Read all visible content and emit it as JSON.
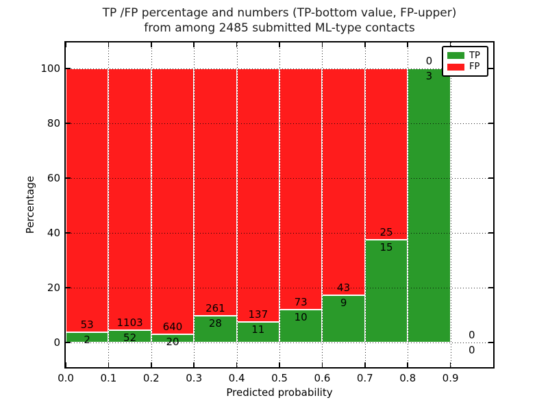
{
  "figure": {
    "title_line1": "TP /FP percentage and numbers (TP-bottom value, FP-upper)",
    "title_line2": "from among 2485 submitted ML-type contacts",
    "xlabel": "Predicted probability",
    "ylabel": "Percentage"
  },
  "legend": {
    "position": "upper right",
    "items": [
      {
        "label": "TP",
        "color": "#2a9a2a"
      },
      {
        "label": "FP",
        "color": "#ff1c1c"
      }
    ]
  },
  "chart_data": {
    "type": "bar",
    "stacked": true,
    "title": "TP /FP percentage and numbers (TP-bottom value, FP-upper) from among 2485 submitted ML-type contacts",
    "xlabel": "Predicted probability",
    "ylabel": "Percentage",
    "bins": {
      "start": 0.0,
      "width": 0.1,
      "count": 10
    },
    "x_tick_labels": [
      "0.0",
      "0.1",
      "0.2",
      "0.3",
      "0.4",
      "0.5",
      "0.6",
      "0.7",
      "0.8",
      "0.9"
    ],
    "y_tick_values": [
      0,
      20,
      40,
      60,
      80,
      100
    ],
    "y_tick_labels": [
      "0",
      "20",
      "40",
      "60",
      "80",
      "100"
    ],
    "series": [
      {
        "name": "TP",
        "color": "#2a9a2a",
        "counts": [
          2,
          52,
          20,
          28,
          11,
          10,
          9,
          15,
          3,
          0
        ]
      },
      {
        "name": "FP",
        "color": "#ff1c1c",
        "counts": [
          53,
          1103,
          640,
          261,
          137,
          73,
          43,
          25,
          0,
          0
        ]
      }
    ],
    "bar_height_unit": "percent of bin total, stacked to 100",
    "total_contacts": 2485,
    "xlim": [
      0.0,
      1.0
    ],
    "ylim": [
      -9,
      109.5
    ],
    "grid": true,
    "grid_style": "dotted",
    "legend_position": "upper right"
  }
}
